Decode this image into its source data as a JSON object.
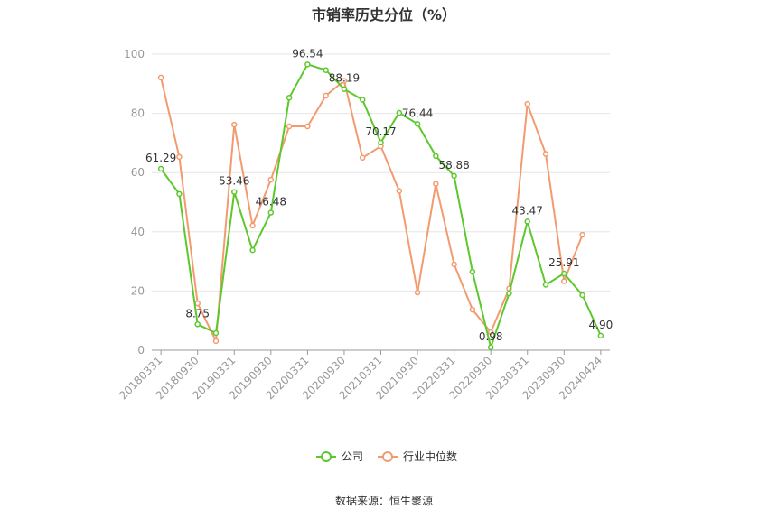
{
  "chart_data": {
    "type": "line",
    "title": "市销率历史分位（%）",
    "source": "数据来源：恒生聚源",
    "ylim": [
      0,
      100
    ],
    "yticks": [
      0,
      20,
      40,
      60,
      80,
      100
    ],
    "grid": true,
    "legend_position": "bottom",
    "x": [
      "20180331",
      "20180630",
      "20180930",
      "20181231",
      "20190331",
      "20190630",
      "20190930",
      "20191231",
      "20200331",
      "20200630",
      "20200930",
      "20201231",
      "20210331",
      "20210630",
      "20210930",
      "20211231",
      "20220331",
      "20220630",
      "20220930",
      "20221231",
      "20230331",
      "20230630",
      "20230930",
      "20231231",
      "20240424"
    ],
    "xtick_labels": [
      "20180331",
      "20180930",
      "20190331",
      "20190930",
      "20200331",
      "20200930",
      "20210331",
      "20210930",
      "20220331",
      "20220930",
      "20230331",
      "20230930",
      "20240424"
    ],
    "series": [
      {
        "name": "公司",
        "color": "#5cc82c",
        "values": [
          61.29,
          52.8,
          8.75,
          5.8,
          53.46,
          33.8,
          46.48,
          85.3,
          96.54,
          94.6,
          88.19,
          84.6,
          70.17,
          80.2,
          76.44,
          65.6,
          58.88,
          26.5,
          0.98,
          19.2,
          43.47,
          22.1,
          25.91,
          18.6,
          4.9
        ],
        "labels": [
          "61.29",
          "",
          "8.75",
          "",
          "53.46",
          "",
          "46.48",
          "",
          "96.54",
          "",
          "88.19",
          "",
          "70.17",
          "",
          "76.44",
          "",
          "58.88",
          "",
          "0.98",
          "",
          "43.47",
          "",
          "25.91",
          "",
          "4.90"
        ]
      },
      {
        "name": "行业中位数",
        "color": "#f39b70",
        "values": [
          92.1,
          65.3,
          15.8,
          3.1,
          76.2,
          42.1,
          57.6,
          75.6,
          75.6,
          86.0,
          91.0,
          65.0,
          68.9,
          53.8,
          19.5,
          56.2,
          29.0,
          13.7,
          6.1,
          20.8,
          83.2,
          66.3,
          23.3,
          39.0,
          null
        ]
      }
    ]
  }
}
